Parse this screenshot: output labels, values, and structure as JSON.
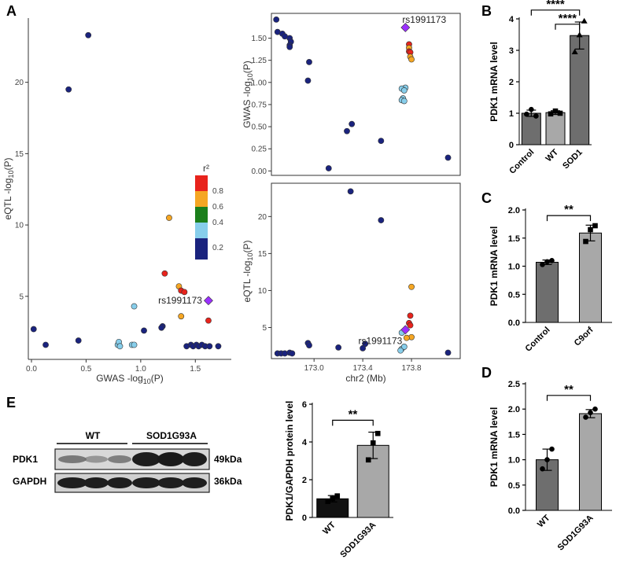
{
  "panels": {
    "A": "A",
    "B": "B",
    "C": "C",
    "D": "D",
    "E": "E"
  },
  "colors": {
    "r2_0": "#1a237e",
    "r2_02": "#87ceeb",
    "r2_04": "#1b7f1b",
    "r2_06": "#f5a623",
    "r2_08": "#e8231c",
    "lead": "#9b30ff",
    "bar_dark": "#6e6e6e",
    "bar_light": "#a8a8a8"
  },
  "lead_snp": "rs1991173",
  "legend": {
    "title": "r²",
    "ticks": [
      "0.8",
      "0.6",
      "0.4",
      "0.2"
    ]
  },
  "chart_data": [
    {
      "id": "A-scatter",
      "type": "scatter",
      "xlabel": "GWAS  -log10(P)",
      "ylabel": "eQTL  -log10(P)",
      "xlim": [
        0,
        1.75
      ],
      "ylim": [
        0.8,
        24.5
      ],
      "xticks": [
        "0.0",
        "0.5",
        "1.0",
        "1.5"
      ],
      "yticks": [
        "5",
        "10",
        "15",
        "20"
      ],
      "points": [
        {
          "x": 0.52,
          "y": 23.3,
          "c": 0
        },
        {
          "x": 0.34,
          "y": 19.5,
          "c": 0
        },
        {
          "x": 1.26,
          "y": 10.5,
          "c": 0.6
        },
        {
          "x": 1.22,
          "y": 6.6,
          "c": 0.8
        },
        {
          "x": 1.35,
          "y": 5.7,
          "c": 0.6
        },
        {
          "x": 1.37,
          "y": 5.4,
          "c": 0.8
        },
        {
          "x": 1.4,
          "y": 5.3,
          "c": 0.8
        },
        {
          "x": 0.94,
          "y": 4.3,
          "c": 0.2
        },
        {
          "x": 1.62,
          "y": 3.3,
          "c": 0.8
        },
        {
          "x": 1.37,
          "y": 3.6,
          "c": 0.6
        },
        {
          "x": 1.2,
          "y": 2.9,
          "c": 0
        },
        {
          "x": 1.19,
          "y": 2.8,
          "c": 0
        },
        {
          "x": 0.02,
          "y": 2.7,
          "c": 0
        },
        {
          "x": 1.03,
          "y": 2.6,
          "c": 0
        },
        {
          "x": 0.43,
          "y": 1.9,
          "c": 0
        },
        {
          "x": 0.13,
          "y": 1.6,
          "c": 0
        },
        {
          "x": 0.79,
          "y": 1.6,
          "c": 0.2
        },
        {
          "x": 0.8,
          "y": 1.8,
          "c": 0.2
        },
        {
          "x": 0.81,
          "y": 1.5,
          "c": 0.2
        },
        {
          "x": 0.92,
          "y": 1.6,
          "c": 0.2
        },
        {
          "x": 0.94,
          "y": 1.6,
          "c": 0.2
        },
        {
          "x": 1.42,
          "y": 1.5,
          "c": 0
        },
        {
          "x": 1.46,
          "y": 1.6,
          "c": 0
        },
        {
          "x": 1.48,
          "y": 1.5,
          "c": 0
        },
        {
          "x": 1.51,
          "y": 1.6,
          "c": 0
        },
        {
          "x": 1.53,
          "y": 1.5,
          "c": 0
        },
        {
          "x": 1.56,
          "y": 1.6,
          "c": 0
        },
        {
          "x": 1.59,
          "y": 1.5,
          "c": 0
        },
        {
          "x": 1.63,
          "y": 1.5,
          "c": 0
        },
        {
          "x": 1.71,
          "y": 1.5,
          "c": 0
        }
      ],
      "lead": {
        "x": 1.62,
        "y": 4.7,
        "label": "rs1991173"
      }
    },
    {
      "id": "A-gwas",
      "type": "scatter",
      "xlabel": "",
      "ylabel": "GWAS  -log10(P)",
      "xlim": [
        172.65,
        174.2
      ],
      "ylim": [
        -0.05,
        1.78
      ],
      "yticks": [
        "0.00",
        "0.25",
        "0.50",
        "0.75",
        "1.00",
        "1.25",
        "1.50"
      ],
      "points": [
        {
          "x": 172.69,
          "y": 1.71,
          "c": 0
        },
        {
          "x": 172.7,
          "y": 1.57,
          "c": 0
        },
        {
          "x": 172.74,
          "y": 1.55,
          "c": 0
        },
        {
          "x": 172.76,
          "y": 1.52,
          "c": 0
        },
        {
          "x": 172.8,
          "y": 1.5,
          "c": 0
        },
        {
          "x": 172.81,
          "y": 1.46,
          "c": 0
        },
        {
          "x": 172.8,
          "y": 1.42,
          "c": 0
        },
        {
          "x": 172.8,
          "y": 1.4,
          "c": 0
        },
        {
          "x": 172.96,
          "y": 1.23,
          "c": 0
        },
        {
          "x": 172.95,
          "y": 1.02,
          "c": 0
        },
        {
          "x": 173.27,
          "y": 0.45,
          "c": 0
        },
        {
          "x": 173.31,
          "y": 0.53,
          "c": 0
        },
        {
          "x": 173.12,
          "y": 0.03,
          "c": 0
        },
        {
          "x": 173.55,
          "y": 0.34,
          "c": 0
        },
        {
          "x": 174.1,
          "y": 0.15,
          "c": 0
        },
        {
          "x": 173.78,
          "y": 1.43,
          "c": 0.8
        },
        {
          "x": 173.78,
          "y": 1.39,
          "c": 0.6
        },
        {
          "x": 173.78,
          "y": 1.35,
          "c": 0.8
        },
        {
          "x": 173.79,
          "y": 1.34,
          "c": 0.8
        },
        {
          "x": 173.79,
          "y": 1.29,
          "c": 0.6
        },
        {
          "x": 173.8,
          "y": 1.26,
          "c": 0.6
        },
        {
          "x": 173.75,
          "y": 0.94,
          "c": 0.2
        },
        {
          "x": 173.72,
          "y": 0.93,
          "c": 0.2
        },
        {
          "x": 173.74,
          "y": 0.91,
          "c": 0.2
        },
        {
          "x": 173.73,
          "y": 0.82,
          "c": 0.2
        },
        {
          "x": 173.72,
          "y": 0.8,
          "c": 0.2
        },
        {
          "x": 173.74,
          "y": 0.79,
          "c": 0.2
        }
      ],
      "lead": {
        "x": 173.75,
        "y": 1.62,
        "label": "rs1991173"
      }
    },
    {
      "id": "A-eqtl",
      "type": "scatter",
      "xlabel": "chr2 (Mb)",
      "ylabel": "eQTL  -log10(P)",
      "xlim": [
        172.65,
        174.2
      ],
      "ylim": [
        0.8,
        24.5
      ],
      "xticks": [
        "173.0",
        "173.4",
        "173.8"
      ],
      "yticks": [
        "5",
        "10",
        "15",
        "20"
      ],
      "points": [
        {
          "x": 173.3,
          "y": 23.4,
          "c": 0
        },
        {
          "x": 173.55,
          "y": 19.5,
          "c": 0
        },
        {
          "x": 173.8,
          "y": 10.5,
          "c": 0.6
        },
        {
          "x": 173.79,
          "y": 6.6,
          "c": 0.8
        },
        {
          "x": 173.78,
          "y": 5.6,
          "c": 0.8
        },
        {
          "x": 173.79,
          "y": 5.3,
          "c": 0.8
        },
        {
          "x": 173.8,
          "y": 3.7,
          "c": 0.6
        },
        {
          "x": 173.76,
          "y": 3.6,
          "c": 0.6
        },
        {
          "x": 173.72,
          "y": 4.3,
          "c": 0.2
        },
        {
          "x": 172.95,
          "y": 2.9,
          "c": 0
        },
        {
          "x": 172.96,
          "y": 2.6,
          "c": 0
        },
        {
          "x": 173.2,
          "y": 2.3,
          "c": 0
        },
        {
          "x": 173.42,
          "y": 2.8,
          "c": 0
        },
        {
          "x": 173.4,
          "y": 2.2,
          "c": 0
        },
        {
          "x": 174.1,
          "y": 1.6,
          "c": 0
        },
        {
          "x": 172.7,
          "y": 1.5,
          "c": 0
        },
        {
          "x": 172.73,
          "y": 1.5,
          "c": 0
        },
        {
          "x": 172.76,
          "y": 1.5,
          "c": 0
        },
        {
          "x": 172.8,
          "y": 1.6,
          "c": 0
        },
        {
          "x": 172.82,
          "y": 1.5,
          "c": 0
        },
        {
          "x": 173.72,
          "y": 2.1,
          "c": 0.2
        },
        {
          "x": 173.74,
          "y": 2.4,
          "c": 0.2
        },
        {
          "x": 173.71,
          "y": 1.9,
          "c": 0.2
        }
      ],
      "lead": {
        "x": 173.75,
        "y": 4.7,
        "label": "rs1991173"
      }
    },
    {
      "id": "B",
      "type": "bar",
      "ylabel": "PDK1 mRNA level",
      "categories": [
        "Control",
        "WT",
        "SOD1"
      ],
      "values": [
        1.0,
        1.02,
        3.47
      ],
      "errors": [
        0.1,
        0.06,
        0.43
      ],
      "points": [
        [
          0.97,
          1.12,
          0.91
        ],
        [
          0.98,
          1.07,
          1.0
        ],
        [
          2.95,
          3.49,
          3.93
        ]
      ],
      "markers": [
        "circle",
        "square",
        "triangle"
      ],
      "ylim": [
        0,
        4
      ],
      "yticks": [
        "0",
        "1",
        "2",
        "3",
        "4"
      ],
      "sig": [
        {
          "label": "****",
          "from": 0,
          "to": 2,
          "y": 4.28
        },
        {
          "label": "****",
          "from": 1,
          "to": 2,
          "y": 3.83
        }
      ]
    },
    {
      "id": "C",
      "type": "bar",
      "ylabel": "PDK1 mRNA level",
      "categories": [
        "Control",
        "C9orf"
      ],
      "values": [
        1.07,
        1.59
      ],
      "errors": [
        0.04,
        0.14
      ],
      "points": [
        [
          1.03,
          1.08,
          1.1
        ],
        [
          1.44,
          1.65,
          1.72
        ]
      ],
      "markers": [
        "circle",
        "square"
      ],
      "ylim": [
        0,
        2.0
      ],
      "yticks": [
        "0.0",
        "0.5",
        "1.0",
        "1.5",
        "2.0"
      ],
      "sig": [
        {
          "label": "**",
          "from": 0,
          "to": 1,
          "y": 1.9
        }
      ]
    },
    {
      "id": "D",
      "type": "bar",
      "ylabel": "PDK1 mRNA level",
      "categories": [
        "WT",
        "SOD1G93A"
      ],
      "values": [
        1.0,
        1.91
      ],
      "errors": [
        0.21,
        0.08
      ],
      "points": [
        [
          0.82,
          1.0,
          1.21
        ],
        [
          1.84,
          1.93,
          2.0
        ]
      ],
      "markers": [
        "circle",
        "circle"
      ],
      "ylim": [
        0,
        2.5
      ],
      "yticks": [
        "0.0",
        "0.5",
        "1.0",
        "1.5",
        "2.0",
        "2.5"
      ],
      "sig": [
        {
          "label": "**",
          "from": 0,
          "to": 1,
          "y": 2.27
        }
      ]
    },
    {
      "id": "E",
      "type": "bar",
      "ylabel": "PDK1/GAPDH protein level",
      "categories": [
        "WT",
        "SOD1G93A"
      ],
      "values": [
        0.99,
        3.82
      ],
      "errors": [
        0.17,
        0.7
      ],
      "points": [
        [
          0.85,
          1.0,
          1.14
        ],
        [
          3.05,
          3.95,
          4.45
        ]
      ],
      "markers": [
        "square",
        "square"
      ],
      "ylim": [
        0,
        6
      ],
      "yticks": [
        "0",
        "2",
        "4",
        "6"
      ],
      "sig": [
        {
          "label": "**",
          "from": 0,
          "to": 1,
          "y": 5.15
        }
      ]
    }
  ],
  "blot": {
    "group_wt": "WT",
    "group_sod": "SOD1G93A",
    "rows": [
      {
        "name": "PDK1",
        "size": "49kDa"
      },
      {
        "name": "GAPDH",
        "size": "36kDa"
      }
    ]
  }
}
